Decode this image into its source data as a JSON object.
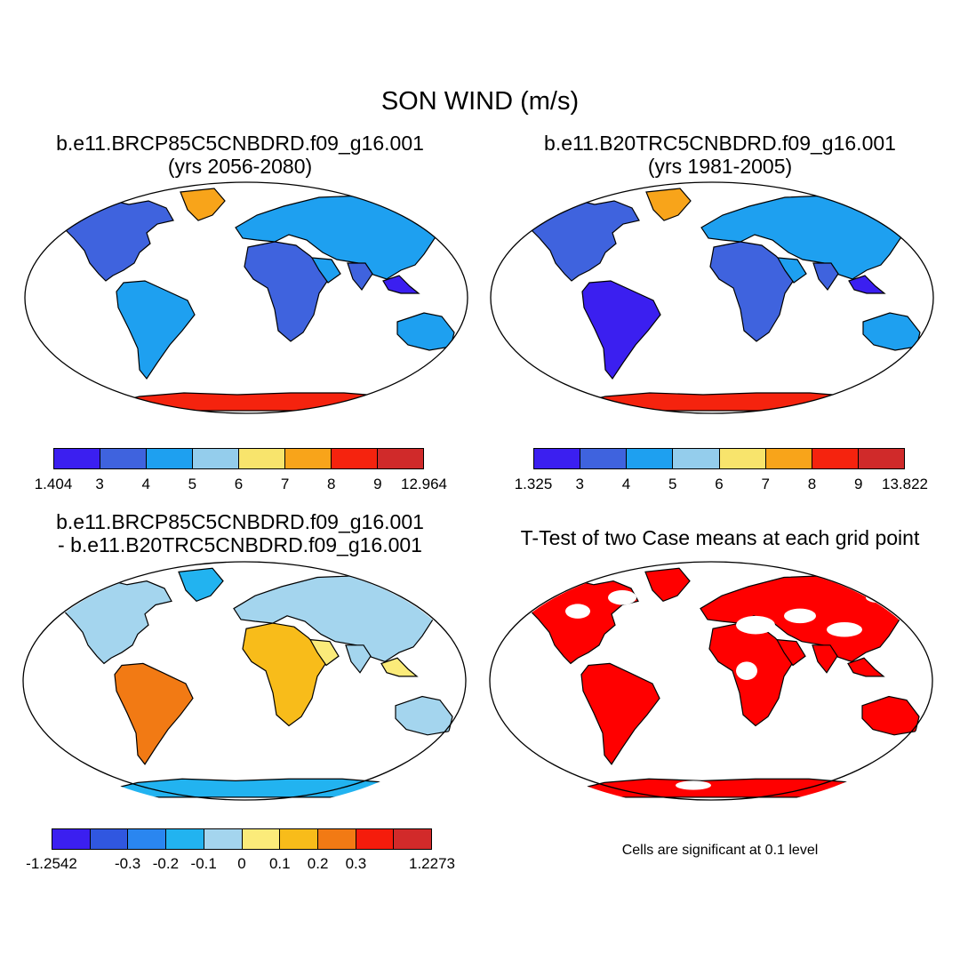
{
  "title": "SON WIND (m/s)",
  "panels": [
    {
      "title_line1": "b.e11.BRCP85C5CNBDRD.f09_g16.001",
      "title_line2": "(yrs 2056-2080)",
      "colorbar": {
        "colors": [
          "#3b1ff0",
          "#3f63de",
          "#1ea0f0",
          "#94cdec",
          "#f8e46c",
          "#f8a41a",
          "#f5230e",
          "#d02a2a"
        ],
        "labels": [
          "1.404",
          "3",
          "4",
          "5",
          "6",
          "7",
          "8",
          "9",
          "12.964"
        ]
      }
    },
    {
      "title_line1": "b.e11.B20TRC5CNBDRD.f09_g16.001",
      "title_line2": "(yrs 1981-2005)",
      "colorbar": {
        "colors": [
          "#3b1ff0",
          "#3f63de",
          "#1ea0f0",
          "#94cdec",
          "#f8e46c",
          "#f8a41a",
          "#f5230e",
          "#d02a2a"
        ],
        "labels": [
          "1.325",
          "3",
          "4",
          "5",
          "6",
          "7",
          "8",
          "9",
          "13.822"
        ]
      }
    },
    {
      "title_line1": "b.e11.BRCP85C5CNBDRD.f09_g16.001",
      "title_line2": "- b.e11.B20TRC5CNBDRD.f09_g16.001",
      "colorbar": {
        "colors": [
          "#3b1ff0",
          "#3057e0",
          "#2a86f0",
          "#22b3f0",
          "#a4d5ee",
          "#fbeb7a",
          "#f8bc1a",
          "#f27a14",
          "#f51c0c",
          "#d22a2a"
        ],
        "labels": [
          "-1.2542",
          "",
          "-0.3",
          "-0.2",
          "-0.1",
          "0",
          "0.1",
          "0.2",
          "0.3",
          "",
          "1.2273"
        ]
      }
    },
    {
      "title_line1": "T-Test of two Case means at each grid point",
      "note": "Cells are significant at 0.1 level",
      "significant_color": "#ff0000"
    }
  ]
}
